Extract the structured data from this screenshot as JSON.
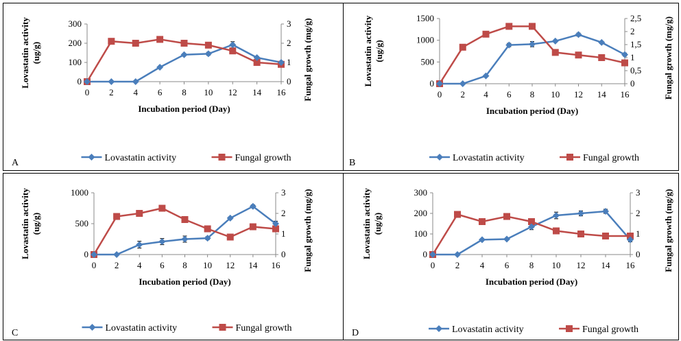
{
  "colors": {
    "lovastatin": "#4a7ebb",
    "fungal": "#be4b48",
    "error_bar": "#000000"
  },
  "legend": {
    "lovastatin_label": "Lovastatin activity",
    "fungal_label": "Fungal growth"
  },
  "axis_titles": {
    "x": "Incubation period (Day)",
    "y_left_line1": "Lovastatin activity",
    "y_left_line2": "(ug/g)",
    "y_right": "Fungal growth (mg/g)"
  },
  "chart_data": [
    {
      "panel": "A",
      "type": "line",
      "x": [
        0,
        2,
        4,
        6,
        8,
        10,
        12,
        14,
        16
      ],
      "xlabel": "Incubation period (Day)",
      "ylabel": "Lovastatin activity (ug/g)",
      "y2label": "Fungal growth (mg/g)",
      "ylim": [
        0,
        300
      ],
      "yticks": [
        "0",
        "100",
        "200",
        "300"
      ],
      "y2lim": [
        0,
        3
      ],
      "y2ticks": [
        "0",
        "1",
        "2",
        "3"
      ],
      "series": [
        {
          "name": "Lovastatin activity",
          "axis": "left",
          "values": [
            0,
            0,
            0,
            75,
            140,
            145,
            192,
            125,
            100
          ],
          "errors": [
            0,
            0,
            0,
            5,
            6,
            8,
            16,
            6,
            6
          ]
        },
        {
          "name": "Fungal growth",
          "axis": "right",
          "values": [
            0,
            2.1,
            2.0,
            2.2,
            2.0,
            1.9,
            1.6,
            1.0,
            0.9
          ]
        }
      ]
    },
    {
      "panel": "B",
      "type": "line",
      "x": [
        0,
        2,
        4,
        6,
        8,
        10,
        12,
        14,
        16
      ],
      "xlabel": "Incubation period (Day)",
      "ylabel": "Lovastatin activity (ug/g)",
      "y2label": "Fungal growth (mg/g)",
      "ylim": [
        0,
        1500
      ],
      "yticks": [
        "0",
        "500",
        "1000",
        "1500"
      ],
      "y2lim": [
        0,
        2.5
      ],
      "y2ticks": [
        "0",
        "0,5",
        "1",
        "1,5",
        "2",
        "2,5"
      ],
      "series": [
        {
          "name": "Lovastatin activity",
          "axis": "left",
          "values": [
            0,
            0,
            180,
            890,
            910,
            980,
            1130,
            950,
            670
          ],
          "errors": [
            0,
            0,
            10,
            40,
            60,
            25,
            35,
            25,
            35
          ]
        },
        {
          "name": "Fungal growth",
          "axis": "right",
          "values": [
            0,
            1.4,
            1.9,
            2.2,
            2.2,
            1.2,
            1.1,
            1.0,
            0.8
          ]
        }
      ]
    },
    {
      "panel": "C",
      "type": "line",
      "x": [
        0,
        2,
        4,
        6,
        8,
        10,
        12,
        14,
        16
      ],
      "xlabel": "Incubation period (Day)",
      "ylabel": "Lovastatin activity (ug/g)",
      "y2label": "Fungal growth (mg/g)",
      "ylim": [
        0,
        1000
      ],
      "yticks": [
        "0",
        "500",
        "1000"
      ],
      "y2lim": [
        0,
        3
      ],
      "y2ticks": [
        "0",
        "1",
        "2",
        "3"
      ],
      "series": [
        {
          "name": "Lovastatin activity",
          "axis": "left",
          "values": [
            0,
            0,
            160,
            210,
            250,
            265,
            590,
            780,
            500
          ],
          "errors": [
            0,
            0,
            55,
            50,
            50,
            25,
            20,
            25,
            40
          ]
        },
        {
          "name": "Fungal growth",
          "axis": "right",
          "values": [
            0,
            1.85,
            2.0,
            2.25,
            1.7,
            1.25,
            0.85,
            1.35,
            1.25
          ]
        }
      ]
    },
    {
      "panel": "D",
      "type": "line",
      "x": [
        0,
        2,
        4,
        6,
        8,
        10,
        12,
        14,
        16
      ],
      "xlabel": "Incubation period (Day)",
      "ylabel": "Lovastatin activity (ug/g)",
      "y2label": "Fungal growth (mg/g)",
      "ylim": [
        0,
        300
      ],
      "yticks": [
        "0",
        "100",
        "200",
        "300"
      ],
      "y2lim": [
        0,
        3
      ],
      "y2ticks": [
        "0",
        "1",
        "2",
        "3"
      ],
      "series": [
        {
          "name": "Lovastatin activity",
          "axis": "left",
          "values": [
            0,
            0,
            72,
            75,
            135,
            190,
            200,
            210,
            72
          ],
          "errors": [
            0,
            0,
            4,
            4,
            14,
            16,
            12,
            10,
            10
          ]
        },
        {
          "name": "Fungal growth",
          "axis": "right",
          "values": [
            0,
            1.95,
            1.6,
            1.85,
            1.6,
            1.15,
            1.0,
            0.9,
            0.9
          ]
        }
      ]
    }
  ]
}
